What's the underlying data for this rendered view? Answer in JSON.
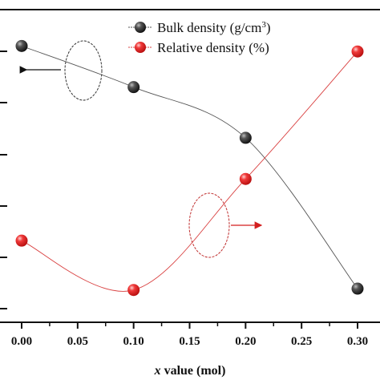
{
  "chart_data": {
    "type": "line",
    "xlabel_italic": "x",
    "xlabel_rest": " value (mol)",
    "xlim": [
      -0.0,
      0.3
    ],
    "xticks": [
      "0.00",
      "0.05",
      "0.10",
      "0.15",
      "0.20",
      "0.25",
      "0.30"
    ],
    "xtick_values": [
      0.0,
      0.05,
      0.1,
      0.15,
      0.2,
      0.25,
      0.3
    ],
    "series": [
      {
        "name": "Bulk density (g/cm",
        "name_sup": "3",
        "name_end": ")",
        "axis": "left",
        "color": "#3a3a3a",
        "x": [
          0.0,
          0.1,
          0.2,
          0.3
        ],
        "y": [
          0.92,
          0.77,
          0.585,
          0.035
        ]
      },
      {
        "name": "Relative density (%)",
        "axis": "right",
        "color": "#e23030",
        "x": [
          0.0,
          0.1,
          0.2,
          0.3
        ],
        "y": [
          0.21,
          0.03,
          0.435,
          0.9
        ]
      }
    ],
    "legend_position": "top-center",
    "grid": false
  }
}
